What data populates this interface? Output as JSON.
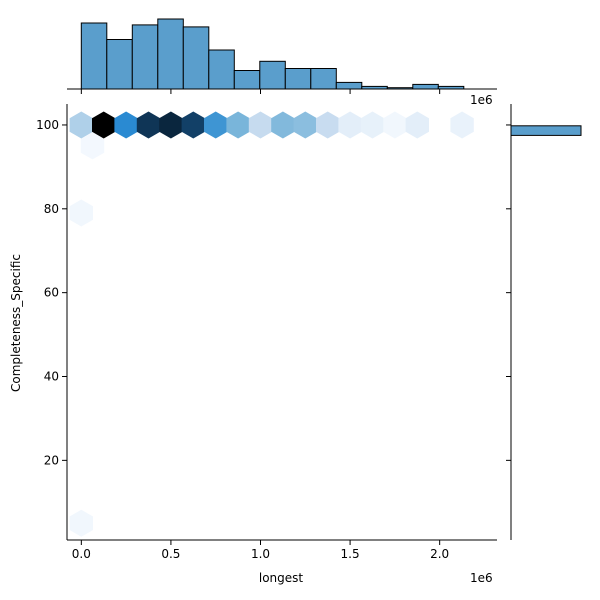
{
  "chart_data": {
    "type": "hexbin-jointplot",
    "xlabel": "longest",
    "ylabel": "Completeness_Specific",
    "x_offset_label": "1e6",
    "top_offset_label": "1e6",
    "x_ticks": [
      0.0,
      0.5,
      1.0,
      1.5,
      2.0
    ],
    "x_tick_labels": [
      "0.0",
      "0.5",
      "1.0",
      "1.5",
      "2.0"
    ],
    "y_ticks": [
      20,
      40,
      60,
      80,
      100
    ],
    "y_tick_labels": [
      "20",
      "40",
      "60",
      "80",
      "100"
    ],
    "xlim": [
      -0.08,
      2.32
    ],
    "ylim": [
      1,
      105
    ],
    "hexbins": [
      {
        "x": 0.0,
        "y": 100,
        "density": 0.3
      },
      {
        "x": 0.125,
        "y": 100,
        "density": 1.0
      },
      {
        "x": 0.25,
        "y": 100,
        "density": 0.55
      },
      {
        "x": 0.375,
        "y": 100,
        "density": 0.85
      },
      {
        "x": 0.5,
        "y": 100,
        "density": 0.92
      },
      {
        "x": 0.625,
        "y": 100,
        "density": 0.8
      },
      {
        "x": 0.75,
        "y": 100,
        "density": 0.52
      },
      {
        "x": 0.875,
        "y": 100,
        "density": 0.42
      },
      {
        "x": 1.0,
        "y": 100,
        "density": 0.25
      },
      {
        "x": 1.125,
        "y": 100,
        "density": 0.4
      },
      {
        "x": 1.25,
        "y": 100,
        "density": 0.38
      },
      {
        "x": 1.375,
        "y": 100,
        "density": 0.24
      },
      {
        "x": 1.5,
        "y": 100,
        "density": 0.1
      },
      {
        "x": 1.625,
        "y": 100,
        "density": 0.08
      },
      {
        "x": 1.75,
        "y": 100,
        "density": 0.03
      },
      {
        "x": 1.875,
        "y": 100,
        "density": 0.1
      },
      {
        "x": 2.125,
        "y": 100,
        "density": 0.07
      },
      {
        "x": 0.0625,
        "y": 95,
        "density": 0.02
      },
      {
        "x": 0.0,
        "y": 79,
        "density": 0.03
      },
      {
        "x": 0.0,
        "y": 5,
        "density": 0.03
      }
    ],
    "top_histogram": {
      "bin_edges": [
        0.0,
        0.1423,
        0.2846,
        0.4269,
        0.5692,
        0.7115,
        0.8538,
        0.9961,
        1.1384,
        1.2807,
        1.423,
        1.5653,
        1.7076,
        1.8499,
        1.9922,
        2.1345
      ],
      "heights": [
        1.0,
        0.75,
        0.97,
        1.06,
        0.94,
        0.59,
        0.28,
        0.42,
        0.31,
        0.31,
        0.1,
        0.04,
        0.02,
        0.07,
        0.04
      ]
    },
    "right_histogram": {
      "bins": [
        {
          "y0": 97.5,
          "y1": 99.8,
          "value": 1.0
        }
      ]
    },
    "colors": {
      "hist_fill": "#5a9ecc",
      "hist_edge": "#000000",
      "axis": "#000000"
    },
    "colormap": "Blues"
  }
}
